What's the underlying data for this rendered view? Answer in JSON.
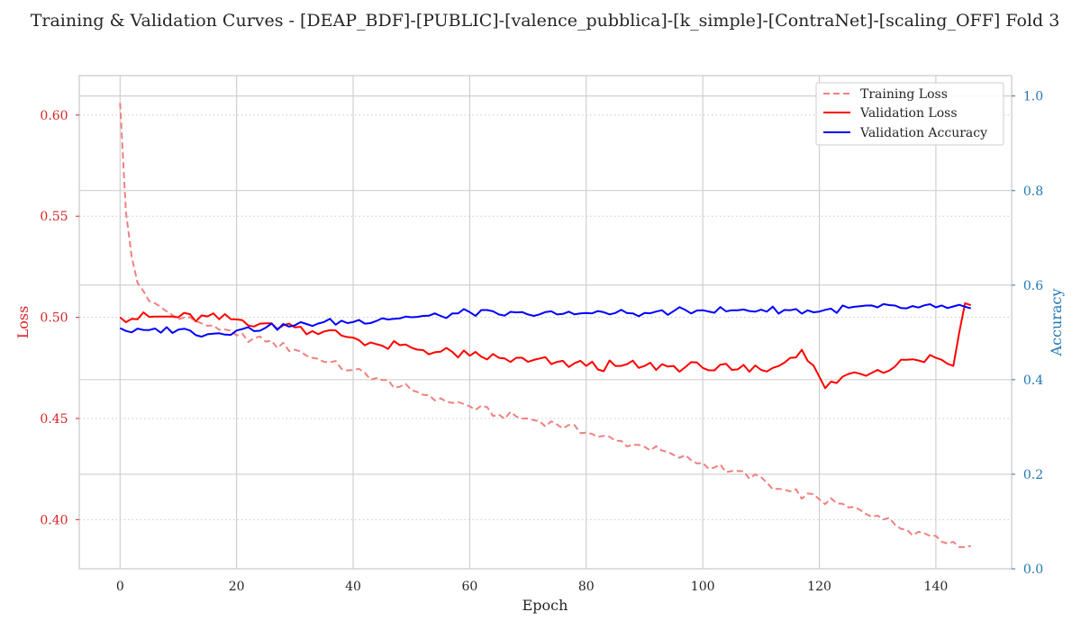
{
  "chart_data": {
    "type": "line",
    "title": "Training & Validation Curves - [DEAP_BDF]-[PUBLIC]-[valence_pubblica]-[k_simple]-[ContraNet]-[scaling_OFF] Fold 3",
    "xlabel": "Epoch",
    "ylabel_left": "Loss",
    "ylabel_right": "Accuracy",
    "xlim": [
      -7,
      153
    ],
    "ylim_left": [
      0.3757,
      0.6195
    ],
    "ylim_right": [
      0.0,
      1.0432
    ],
    "x_ticks": [
      0,
      20,
      40,
      60,
      80,
      100,
      120,
      140
    ],
    "y_left_ticks": [
      0.4,
      0.45,
      0.5,
      0.55,
      0.6
    ],
    "y_left_tick_labels": [
      "0.40",
      "0.45",
      "0.50",
      "0.55",
      "0.60"
    ],
    "y_right_ticks": [
      0.0,
      0.2,
      0.4,
      0.6,
      0.8,
      1.0
    ],
    "y_right_tick_labels": [
      "0.0",
      "0.2",
      "0.4",
      "0.6",
      "0.8",
      "1.0"
    ],
    "grid": true,
    "legend_position": "top-right",
    "colors": {
      "training_loss": "#f08080",
      "validation_loss": "#ff0000",
      "validation_accuracy": "#0000ff",
      "left_axis": "#d62728",
      "right_axis": "#1f77b4"
    },
    "series": [
      {
        "name": "Training Loss",
        "axis": "left",
        "style": "dashed",
        "key_points": [
          [
            0,
            0.606
          ],
          [
            1,
            0.552
          ],
          [
            2,
            0.53
          ],
          [
            3,
            0.517
          ],
          [
            4,
            0.513
          ],
          [
            5,
            0.508
          ],
          [
            6,
            0.507
          ],
          [
            8,
            0.503
          ],
          [
            10,
            0.499
          ],
          [
            12,
            0.5
          ],
          [
            14,
            0.497
          ],
          [
            16,
            0.496
          ],
          [
            18,
            0.494
          ],
          [
            20,
            0.491
          ],
          [
            25,
            0.488
          ],
          [
            30,
            0.484
          ],
          [
            35,
            0.478
          ],
          [
            40,
            0.474
          ],
          [
            45,
            0.469
          ],
          [
            50,
            0.464
          ],
          [
            55,
            0.46
          ],
          [
            60,
            0.456
          ],
          [
            65,
            0.452
          ],
          [
            70,
            0.45
          ],
          [
            75,
            0.447
          ],
          [
            80,
            0.443
          ],
          [
            85,
            0.439
          ],
          [
            90,
            0.436
          ],
          [
            95,
            0.432
          ],
          [
            100,
            0.428
          ],
          [
            105,
            0.424
          ],
          [
            110,
            0.421
          ],
          [
            112,
            0.415
          ],
          [
            115,
            0.414
          ],
          [
            120,
            0.41
          ],
          [
            125,
            0.406
          ],
          [
            130,
            0.402
          ],
          [
            135,
            0.395
          ],
          [
            140,
            0.392
          ],
          [
            143,
            0.389
          ],
          [
            146,
            0.387
          ]
        ]
      },
      {
        "name": "Validation Loss",
        "axis": "left",
        "style": "solid",
        "key_points": [
          [
            0,
            0.5
          ],
          [
            10,
            0.5
          ],
          [
            20,
            0.499
          ],
          [
            25,
            0.497
          ],
          [
            30,
            0.495
          ],
          [
            35,
            0.493
          ],
          [
            40,
            0.49
          ],
          [
            45,
            0.486
          ],
          [
            50,
            0.485
          ],
          [
            55,
            0.483
          ],
          [
            60,
            0.481
          ],
          [
            65,
            0.48
          ],
          [
            70,
            0.478
          ],
          [
            75,
            0.478
          ],
          [
            80,
            0.476
          ],
          [
            85,
            0.476
          ],
          [
            90,
            0.476
          ],
          [
            95,
            0.476
          ],
          [
            100,
            0.475
          ],
          [
            105,
            0.474
          ],
          [
            110,
            0.474
          ],
          [
            112,
            0.475
          ],
          [
            117,
            0.484
          ],
          [
            121,
            0.465
          ],
          [
            125,
            0.472
          ],
          [
            130,
            0.474
          ],
          [
            135,
            0.479
          ],
          [
            140,
            0.48
          ],
          [
            143,
            0.476
          ],
          [
            145,
            0.507
          ],
          [
            146,
            0.506
          ]
        ]
      },
      {
        "name": "Validation Accuracy",
        "axis": "right",
        "style": "solid",
        "key_points": [
          [
            0,
            0.509
          ],
          [
            2,
            0.5
          ],
          [
            5,
            0.505
          ],
          [
            10,
            0.506
          ],
          [
            15,
            0.496
          ],
          [
            20,
            0.504
          ],
          [
            25,
            0.51
          ],
          [
            30,
            0.515
          ],
          [
            35,
            0.522
          ],
          [
            40,
            0.522
          ],
          [
            45,
            0.53
          ],
          [
            50,
            0.532
          ],
          [
            55,
            0.535
          ],
          [
            60,
            0.543
          ],
          [
            65,
            0.538
          ],
          [
            70,
            0.538
          ],
          [
            75,
            0.538
          ],
          [
            80,
            0.541
          ],
          [
            85,
            0.541
          ],
          [
            90,
            0.541
          ],
          [
            95,
            0.545
          ],
          [
            100,
            0.547
          ],
          [
            105,
            0.547
          ],
          [
            110,
            0.548
          ],
          [
            115,
            0.547
          ],
          [
            120,
            0.544
          ],
          [
            125,
            0.552
          ],
          [
            130,
            0.553
          ],
          [
            135,
            0.551
          ],
          [
            140,
            0.553
          ],
          [
            143,
            0.555
          ],
          [
            146,
            0.551
          ]
        ]
      }
    ]
  }
}
